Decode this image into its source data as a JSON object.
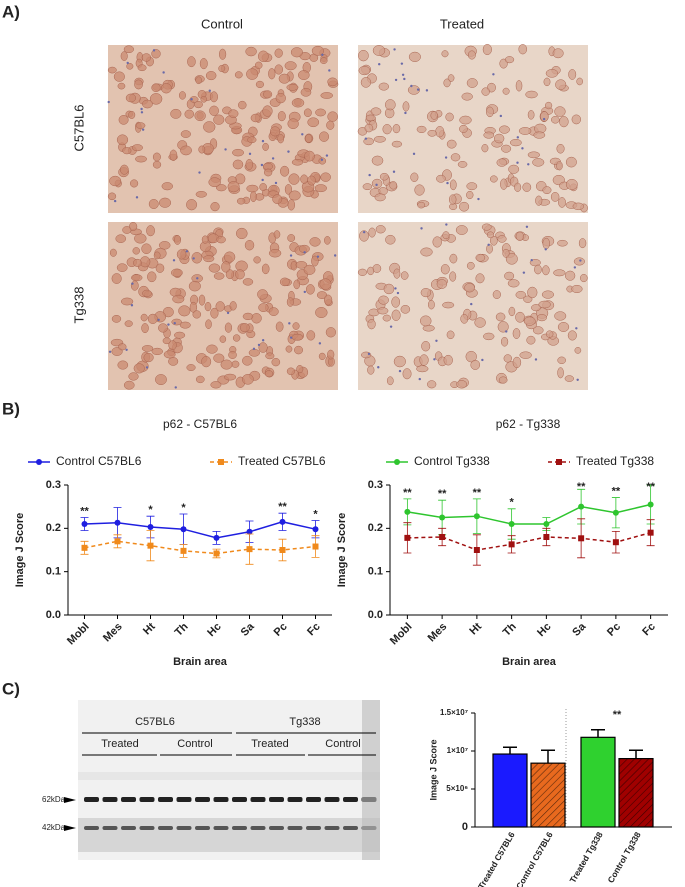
{
  "panels": {
    "a": "A)",
    "b": "B)",
    "c": "C)"
  },
  "micrographs": {
    "columns": [
      "Control",
      "Treated"
    ],
    "rows": [
      "C57BL6",
      "Tg338"
    ]
  },
  "blot": {
    "groups": [
      "C57BL6",
      "Tg338"
    ],
    "subgroups": [
      "Treated",
      "Control",
      "Treated",
      "Control"
    ],
    "markers": [
      "62kDa",
      "42kDa"
    ]
  },
  "chart_data": [
    {
      "type": "line",
      "title": "p62 - C57BL6",
      "x_label": "Brain area",
      "y_label": "Image J Score",
      "categories": [
        "Mobl",
        "Mes",
        "Ht",
        "Th",
        "Hc",
        "Sa",
        "Pc",
        "Fc"
      ],
      "series": [
        {
          "name": "Control C57BL6",
          "color": "#1f1fe0",
          "marker": "circle",
          "dashed": false,
          "values": [
            0.21,
            0.213,
            0.203,
            0.198,
            0.178,
            0.192,
            0.215,
            0.198
          ],
          "errors": [
            0.015,
            0.035,
            0.025,
            0.035,
            0.015,
            0.025,
            0.02,
            0.02
          ]
        },
        {
          "name": "Treated C57BL6",
          "color": "#f08a1c",
          "marker": "square",
          "dashed": true,
          "values": [
            0.155,
            0.17,
            0.16,
            0.148,
            0.142,
            0.152,
            0.15,
            0.158
          ],
          "errors": [
            0.015,
            0.015,
            0.035,
            0.015,
            0.01,
            0.035,
            0.025,
            0.025
          ]
        }
      ],
      "annotations": [
        "**",
        null,
        "*",
        "*",
        null,
        null,
        "**",
        "*"
      ],
      "ylim": [
        0,
        0.3
      ],
      "yticks": [
        {
          "value": 0,
          "label": "0.0"
        },
        0.1,
        0.2,
        0.3
      ]
    },
    {
      "type": "line",
      "title": "p62 - Tg338",
      "x_label": "Brain area",
      "y_label": "Image J Score",
      "categories": [
        "Mobl",
        "Mes",
        "Ht",
        "Th",
        "Hc",
        "Sa",
        "Pc",
        "Fc"
      ],
      "series": [
        {
          "name": "Control Tg338",
          "color": "#2ec52e",
          "marker": "circle",
          "dashed": false,
          "values": [
            0.238,
            0.225,
            0.228,
            0.21,
            0.21,
            0.25,
            0.236,
            0.255
          ],
          "errors": [
            0.03,
            0.04,
            0.04,
            0.035,
            0.015,
            0.04,
            0.035,
            0.045
          ]
        },
        {
          "name": "Treated Tg338",
          "color": "#a01010",
          "marker": "square",
          "dashed": true,
          "values": [
            0.178,
            0.18,
            0.15,
            0.163,
            0.18,
            0.177,
            0.168,
            0.19
          ],
          "errors": [
            0.035,
            0.02,
            0.035,
            0.02,
            0.02,
            0.045,
            0.025,
            0.03
          ]
        }
      ],
      "annotations": [
        "**",
        "**",
        "**",
        "*",
        null,
        "**",
        "**",
        "**"
      ],
      "ylim": [
        0,
        0.3
      ],
      "yticks": [
        {
          "value": 0,
          "label": "0.0"
        },
        0.1,
        0.2,
        0.3
      ]
    },
    {
      "type": "bar",
      "y_label": "Image J Score",
      "categories": [
        "Treated C57BL6",
        "Control C57BL6",
        "Treated Tg338",
        "Control Tg338"
      ],
      "values": [
        9600000,
        8400000,
        11800000,
        9000000
      ],
      "errors": [
        900000,
        1700000,
        1000000,
        1100000
      ],
      "colors": [
        "#1a1aff",
        "#e8691e",
        "#2fd12f",
        "#a00000"
      ],
      "hatched": [
        false,
        true,
        false,
        true
      ],
      "annotations": [
        null,
        null,
        "**",
        null
      ],
      "ylim": [
        0,
        15000000
      ],
      "yticks": [
        0,
        {
          "value": 5000000,
          "label": "5×10⁶"
        },
        {
          "value": 10000000,
          "label": "1×10⁷"
        },
        {
          "value": 15000000,
          "label": "1.5×10⁷"
        }
      ]
    }
  ]
}
